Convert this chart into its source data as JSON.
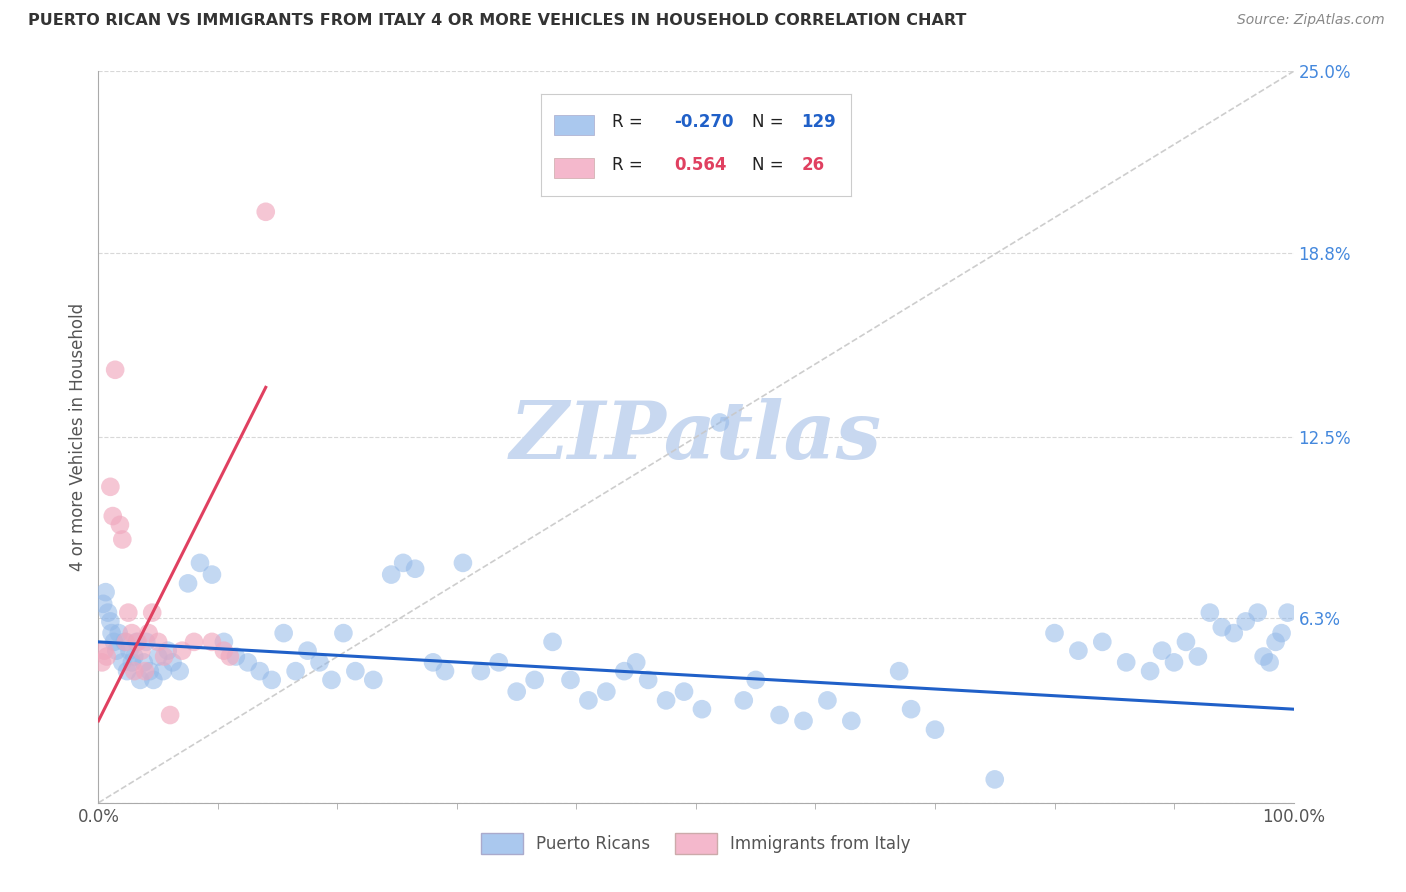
{
  "title": "PUERTO RICAN VS IMMIGRANTS FROM ITALY 4 OR MORE VEHICLES IN HOUSEHOLD CORRELATION CHART",
  "source": "Source: ZipAtlas.com",
  "ylabel": "4 or more Vehicles in Household",
  "xlim": [
    0.0,
    100.0
  ],
  "ylim": [
    0.0,
    25.0
  ],
  "x_tick_labels": [
    "0.0%",
    "100.0%"
  ],
  "y_ticks_right": [
    0.0,
    6.3,
    12.5,
    18.8,
    25.0
  ],
  "y_tick_labels_right": [
    "",
    "6.3%",
    "12.5%",
    "18.8%",
    "25.0%"
  ],
  "blue_R": "-0.270",
  "blue_N": "129",
  "pink_R": "0.564",
  "pink_N": "26",
  "blue_scatter_color": "#92b8e8",
  "pink_scatter_color": "#f0a8be",
  "trend_blue_color": "#2060c8",
  "trend_pink_color": "#e04060",
  "diag_color": "#c8c8c8",
  "background_color": "#ffffff",
  "grid_color": "#d8d8d8",
  "title_color": "#333333",
  "axis_label_color": "#555555",
  "right_tick_color": "#4488dd",
  "legend_label1": "Puerto Ricans",
  "legend_label2": "Immigrants from Italy",
  "legend_blue_fill": "#aac8ee",
  "legend_pink_fill": "#f4b8cc",
  "blue_trend_x0": 0,
  "blue_trend_x1": 100,
  "blue_trend_y0": 5.5,
  "blue_trend_y1": 3.2,
  "pink_trend_x0": 0,
  "pink_trend_x1": 14,
  "pink_trend_y0": 2.8,
  "pink_trend_y1": 14.2,
  "diag_x0": 0,
  "diag_x1": 100,
  "diag_y0": 0,
  "diag_y1": 25,
  "blue_points_x": [
    0.4,
    0.6,
    0.8,
    1.0,
    1.1,
    1.3,
    1.5,
    1.7,
    2.0,
    2.2,
    2.4,
    2.6,
    2.8,
    3.0,
    3.2,
    3.5,
    3.8,
    4.0,
    4.3,
    4.6,
    5.0,
    5.4,
    5.8,
    6.2,
    6.8,
    7.5,
    8.5,
    9.5,
    10.5,
    11.5,
    12.5,
    13.5,
    14.5,
    15.5,
    16.5,
    17.5,
    18.5,
    19.5,
    20.5,
    21.5,
    23.0,
    24.5,
    25.5,
    26.5,
    28.0,
    29.0,
    30.5,
    32.0,
    33.5,
    35.0,
    36.5,
    38.0,
    39.5,
    41.0,
    42.5,
    44.0,
    45.0,
    46.0,
    47.5,
    49.0,
    50.5,
    52.0,
    54.0,
    55.0,
    57.0,
    59.0,
    61.0,
    63.0,
    67.0,
    68.0,
    70.0,
    75.0,
    80.0,
    82.0,
    84.0,
    86.0,
    88.0,
    89.0,
    90.0,
    91.0,
    92.0,
    93.0,
    94.0,
    95.0,
    96.0,
    97.0,
    97.5,
    98.0,
    98.5,
    99.0,
    99.5
  ],
  "blue_points_y": [
    6.8,
    7.2,
    6.5,
    6.2,
    5.8,
    5.5,
    5.2,
    5.8,
    4.8,
    5.5,
    4.5,
    5.2,
    4.8,
    5.0,
    5.5,
    4.2,
    4.8,
    5.5,
    4.5,
    4.2,
    5.0,
    4.5,
    5.2,
    4.8,
    4.5,
    7.5,
    8.2,
    7.8,
    5.5,
    5.0,
    4.8,
    4.5,
    4.2,
    5.8,
    4.5,
    5.2,
    4.8,
    4.2,
    5.8,
    4.5,
    4.2,
    7.8,
    8.2,
    8.0,
    4.8,
    4.5,
    8.2,
    4.5,
    4.8,
    3.8,
    4.2,
    5.5,
    4.2,
    3.5,
    3.8,
    4.5,
    4.8,
    4.2,
    3.5,
    3.8,
    3.2,
    13.0,
    3.5,
    4.2,
    3.0,
    2.8,
    3.5,
    2.8,
    4.5,
    3.2,
    2.5,
    0.8,
    5.8,
    5.2,
    5.5,
    4.8,
    4.5,
    5.2,
    4.8,
    5.5,
    5.0,
    6.5,
    6.0,
    5.8,
    6.2,
    6.5,
    5.0,
    4.8,
    5.5,
    5.8,
    6.5
  ],
  "pink_points_x": [
    0.3,
    0.5,
    0.7,
    1.0,
    1.2,
    1.4,
    1.8,
    2.0,
    2.3,
    2.5,
    2.8,
    3.0,
    3.3,
    3.6,
    3.9,
    4.2,
    4.5,
    5.0,
    5.5,
    6.0,
    7.0,
    8.0,
    9.5,
    10.5,
    11.0,
    14.0
  ],
  "pink_points_y": [
    4.8,
    5.2,
    5.0,
    10.8,
    9.8,
    14.8,
    9.5,
    9.0,
    5.5,
    6.5,
    5.8,
    4.5,
    5.5,
    5.2,
    4.5,
    5.8,
    6.5,
    5.5,
    5.0,
    3.0,
    5.2,
    5.5,
    5.5,
    5.2,
    5.0,
    20.2
  ],
  "watermark_text": "ZIPatlas",
  "watermark_color": "#c8d8f0"
}
